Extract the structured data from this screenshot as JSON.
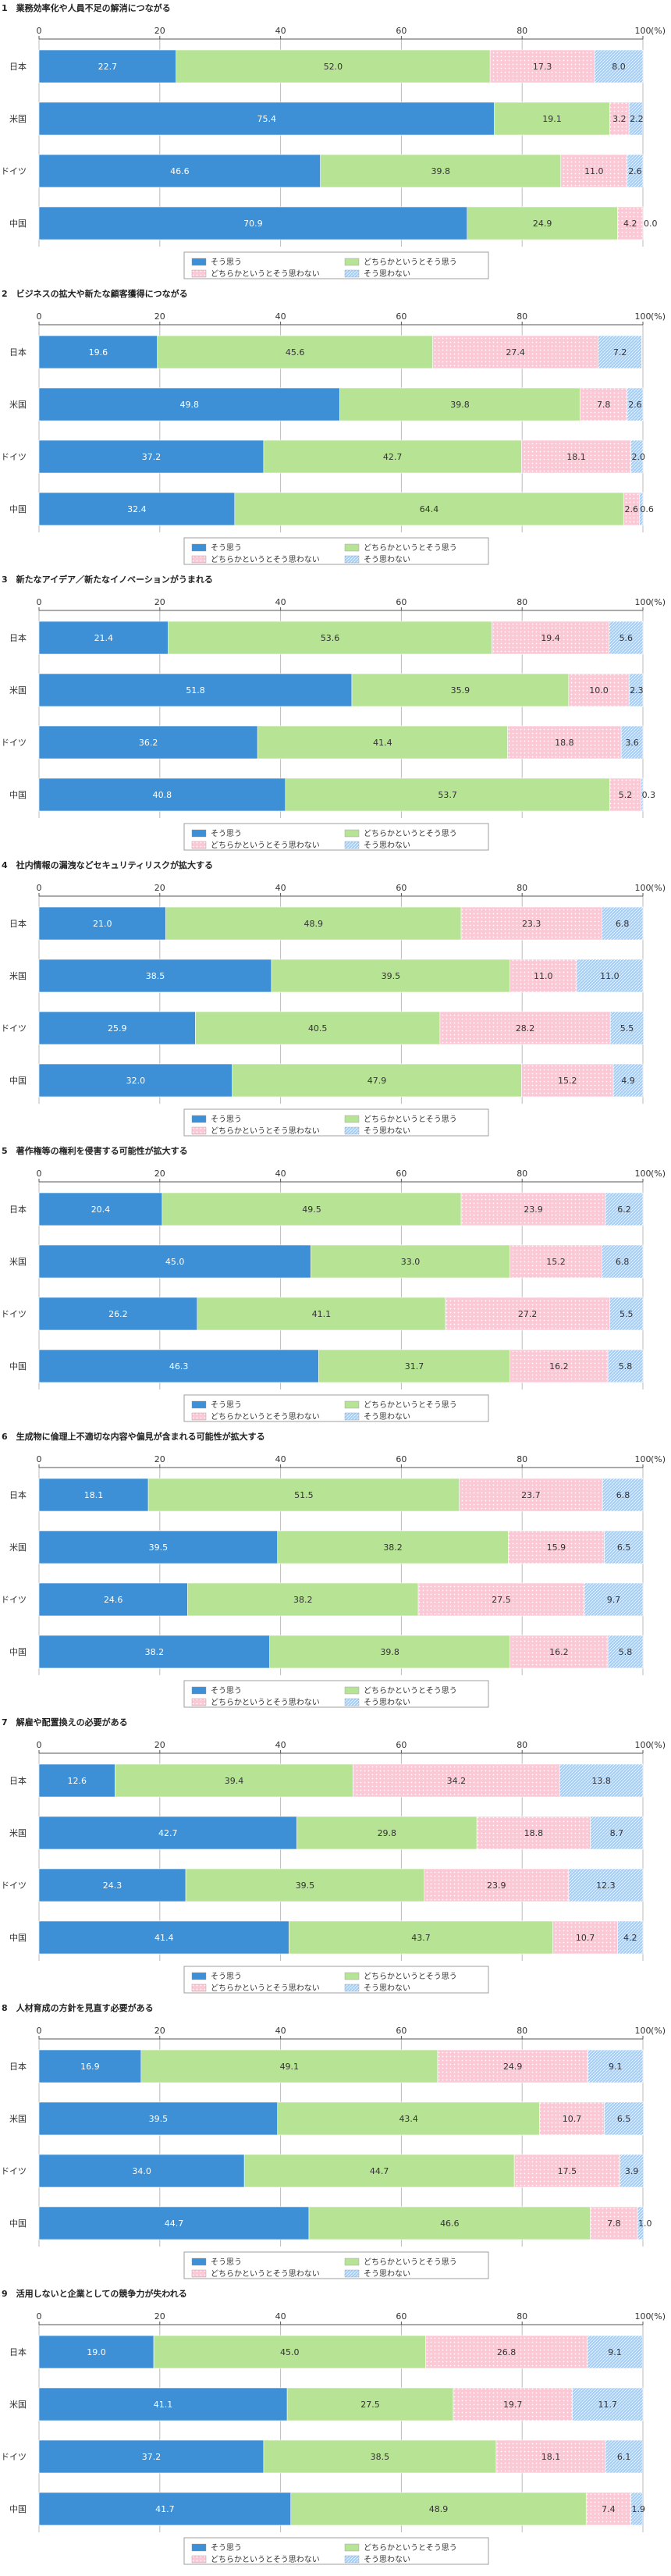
{
  "page": {
    "unit": "(%)"
  },
  "legend_labels": [
    "そう思う",
    "どちらかというとそう思う",
    "どちらかというとそう思わない",
    "そう思わない"
  ],
  "colors": {
    "s1": "#3d8fd6",
    "s2": "#b6e394",
    "s3": "#fbc8d6",
    "s4": "#a9ccef",
    "grid": "#bbbbbb",
    "axis": "#555555"
  },
  "chart_data": [
    {
      "type": "bar",
      "stacked": "horizontal",
      "title": "1　業務効率化や人員不足の解消につながる",
      "categories": [
        "日本",
        "米国",
        "ドイツ",
        "中国"
      ],
      "xlim": [
        0,
        100
      ],
      "xticks": [
        0,
        20,
        40,
        60,
        80,
        100
      ],
      "series": [
        {
          "name": "そう思う",
          "values": [
            22.7,
            75.4,
            46.6,
            70.9
          ]
        },
        {
          "name": "どちらかというとそう思う",
          "values": [
            52.0,
            19.1,
            39.8,
            24.9
          ]
        },
        {
          "name": "どちらかというとそう思わない",
          "values": [
            17.3,
            3.2,
            11.0,
            4.2
          ]
        },
        {
          "name": "そう思わない",
          "values": [
            8.0,
            2.2,
            2.6,
            0.0
          ]
        }
      ]
    },
    {
      "type": "bar",
      "stacked": "horizontal",
      "title": "2　ビジネスの拡大や新たな顧客獲得につながる",
      "categories": [
        "日本",
        "米国",
        "ドイツ",
        "中国"
      ],
      "xlim": [
        0,
        100
      ],
      "xticks": [
        0,
        20,
        40,
        60,
        80,
        100
      ],
      "series": [
        {
          "name": "そう思う",
          "values": [
            19.6,
            49.8,
            37.2,
            32.4
          ]
        },
        {
          "name": "どちらかというとそう思う",
          "values": [
            45.6,
            39.8,
            42.7,
            64.4
          ]
        },
        {
          "name": "どちらかというとそう思わない",
          "values": [
            27.4,
            7.8,
            18.1,
            2.6
          ]
        },
        {
          "name": "そう思わない",
          "values": [
            7.2,
            2.6,
            2.0,
            0.6
          ]
        }
      ]
    },
    {
      "type": "bar",
      "stacked": "horizontal",
      "title": "3　新たなアイデア／新たなイノベーションがうまれる",
      "categories": [
        "日本",
        "米国",
        "ドイツ",
        "中国"
      ],
      "xlim": [
        0,
        100
      ],
      "xticks": [
        0,
        20,
        40,
        60,
        80,
        100
      ],
      "series": [
        {
          "name": "そう思う",
          "values": [
            21.4,
            51.8,
            36.2,
            40.8
          ]
        },
        {
          "name": "どちらかというとそう思う",
          "values": [
            53.6,
            35.9,
            41.4,
            53.7
          ]
        },
        {
          "name": "どちらかというとそう思わない",
          "values": [
            19.4,
            10.0,
            18.8,
            5.2
          ]
        },
        {
          "name": "そう思わない",
          "values": [
            5.6,
            2.3,
            3.6,
            0.3
          ]
        }
      ]
    },
    {
      "type": "bar",
      "stacked": "horizontal",
      "title": "4　社内情報の漏洩などセキュリティリスクが拡大する",
      "categories": [
        "日本",
        "米国",
        "ドイツ",
        "中国"
      ],
      "xlim": [
        0,
        100
      ],
      "xticks": [
        0,
        20,
        40,
        60,
        80,
        100
      ],
      "series": [
        {
          "name": "そう思う",
          "values": [
            21.0,
            38.5,
            25.9,
            32.0
          ]
        },
        {
          "name": "どちらかというとそう思う",
          "values": [
            48.9,
            39.5,
            40.5,
            47.9
          ]
        },
        {
          "name": "どちらかというとそう思わない",
          "values": [
            23.3,
            11.0,
            28.2,
            15.2
          ]
        },
        {
          "name": "そう思わない",
          "values": [
            6.8,
            11.0,
            5.5,
            4.9
          ]
        }
      ]
    },
    {
      "type": "bar",
      "stacked": "horizontal",
      "title": "5　著作権等の権利を侵害する可能性が拡大する",
      "categories": [
        "日本",
        "米国",
        "ドイツ",
        "中国"
      ],
      "xlim": [
        0,
        100
      ],
      "xticks": [
        0,
        20,
        40,
        60,
        80,
        100
      ],
      "series": [
        {
          "name": "そう思う",
          "values": [
            20.4,
            45.0,
            26.2,
            46.3
          ]
        },
        {
          "name": "どちらかというとそう思う",
          "values": [
            49.5,
            33.0,
            41.1,
            31.7
          ]
        },
        {
          "name": "どちらかというとそう思わない",
          "values": [
            23.9,
            15.2,
            27.2,
            16.2
          ]
        },
        {
          "name": "そう思わない",
          "values": [
            6.2,
            6.8,
            5.5,
            5.8
          ]
        }
      ]
    },
    {
      "type": "bar",
      "stacked": "horizontal",
      "title": "6　生成物に倫理上不適切な内容や偏見が含まれる可能性が拡大する",
      "categories": [
        "日本",
        "米国",
        "ドイツ",
        "中国"
      ],
      "xlim": [
        0,
        100
      ],
      "xticks": [
        0,
        20,
        40,
        60,
        80,
        100
      ],
      "series": [
        {
          "name": "そう思う",
          "values": [
            18.1,
            39.5,
            24.6,
            38.2
          ]
        },
        {
          "name": "どちらかというとそう思う",
          "values": [
            51.5,
            38.2,
            38.2,
            39.8
          ]
        },
        {
          "name": "どちらかというとそう思わない",
          "values": [
            23.7,
            15.9,
            27.5,
            16.2
          ]
        },
        {
          "name": "そう思わない",
          "values": [
            6.8,
            6.5,
            9.7,
            5.8
          ]
        }
      ]
    },
    {
      "type": "bar",
      "stacked": "horizontal",
      "title": "7　解雇や配置換えの必要がある",
      "categories": [
        "日本",
        "米国",
        "ドイツ",
        "中国"
      ],
      "xlim": [
        0,
        100
      ],
      "xticks": [
        0,
        20,
        40,
        60,
        80,
        100
      ],
      "series": [
        {
          "name": "そう思う",
          "values": [
            12.6,
            42.7,
            24.3,
            41.4
          ]
        },
        {
          "name": "どちらかというとそう思う",
          "values": [
            39.4,
            29.8,
            39.5,
            43.7
          ]
        },
        {
          "name": "どちらかというとそう思わない",
          "values": [
            34.2,
            18.8,
            23.9,
            10.7
          ]
        },
        {
          "name": "そう思わない",
          "values": [
            13.8,
            8.7,
            12.3,
            4.2
          ]
        }
      ]
    },
    {
      "type": "bar",
      "stacked": "horizontal",
      "title": "8　人材育成の方針を見直す必要がある",
      "categories": [
        "日本",
        "米国",
        "ドイツ",
        "中国"
      ],
      "xlim": [
        0,
        100
      ],
      "xticks": [
        0,
        20,
        40,
        60,
        80,
        100
      ],
      "series": [
        {
          "name": "そう思う",
          "values": [
            16.9,
            39.5,
            34.0,
            44.7
          ]
        },
        {
          "name": "どちらかというとそう思う",
          "values": [
            49.1,
            43.4,
            44.7,
            46.6
          ]
        },
        {
          "name": "どちらかというとそう思わない",
          "values": [
            24.9,
            10.7,
            17.5,
            7.8
          ]
        },
        {
          "name": "そう思わない",
          "values": [
            9.1,
            6.5,
            3.9,
            1.0
          ]
        }
      ]
    },
    {
      "type": "bar",
      "stacked": "horizontal",
      "title": "9　活用しないと企業としての競争力が失われる",
      "categories": [
        "日本",
        "米国",
        "ドイツ",
        "中国"
      ],
      "xlim": [
        0,
        100
      ],
      "xticks": [
        0,
        20,
        40,
        60,
        80,
        100
      ],
      "series": [
        {
          "name": "そう思う",
          "values": [
            19.0,
            41.1,
            37.2,
            41.7
          ]
        },
        {
          "name": "どちらかというとそう思う",
          "values": [
            45.0,
            27.5,
            38.5,
            48.9
          ]
        },
        {
          "name": "どちらかというとそう思わない",
          "values": [
            26.8,
            19.7,
            18.1,
            7.4
          ]
        },
        {
          "name": "そう思わない",
          "values": [
            9.1,
            11.7,
            6.1,
            1.9
          ]
        }
      ]
    }
  ]
}
